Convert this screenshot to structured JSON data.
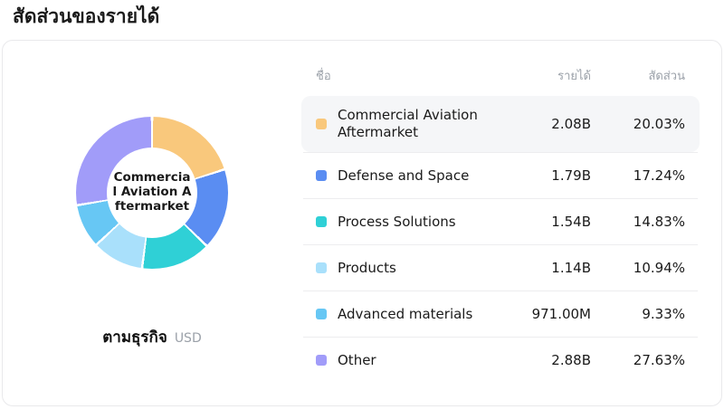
{
  "page_title": "สัดส่วนของรายได้",
  "card": {
    "center_label": "Commercial Aviation Aftermarket",
    "footer_label": "ตามธุรกิจ",
    "footer_unit": "USD"
  },
  "table": {
    "headers": {
      "name": "ชื่อ",
      "revenue": "รายได้",
      "share": "สัดส่วน"
    },
    "highlighted_index": 0
  },
  "chart_data": {
    "type": "pie",
    "donut": true,
    "title": "สัดส่วนของรายได้",
    "group_by": "ตามธุรกิจ",
    "unit": "USD",
    "legend_position": "right",
    "segments": [
      {
        "label": "Commercial Aviation Aftermarket",
        "revenue": "2.08B",
        "share_pct": 20.03,
        "color": "#f9c87c"
      },
      {
        "label": "Defense and Space",
        "revenue": "1.79B",
        "share_pct": 17.24,
        "color": "#5a8df2"
      },
      {
        "label": "Process Solutions",
        "revenue": "1.54B",
        "share_pct": 14.83,
        "color": "#2fd0d6"
      },
      {
        "label": "Products",
        "revenue": "1.14B",
        "share_pct": 10.94,
        "color": "#a9e0fb"
      },
      {
        "label": "Advanced materials",
        "revenue": "971.00M",
        "share_pct": 9.33,
        "color": "#67c7f4"
      },
      {
        "label": "Other",
        "revenue": "2.88B",
        "share_pct": 27.63,
        "color": "#a19cf9"
      }
    ]
  }
}
